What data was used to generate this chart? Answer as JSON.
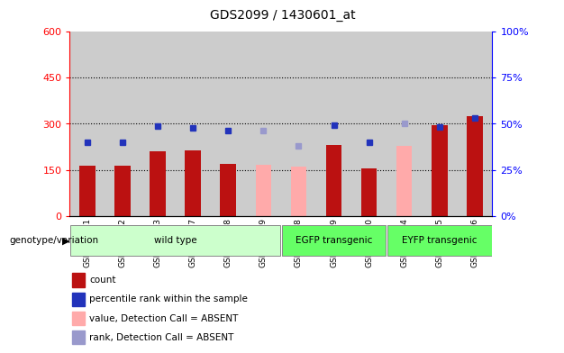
{
  "title": "GDS2099 / 1430601_at",
  "samples": [
    "GSM108531",
    "GSM108532",
    "GSM108533",
    "GSM108537",
    "GSM108538",
    "GSM108539",
    "GSM108528",
    "GSM108529",
    "GSM108530",
    "GSM108534",
    "GSM108535",
    "GSM108536"
  ],
  "groups": [
    {
      "name": "wild type",
      "start": 0,
      "end": 6,
      "color": "#ccffcc"
    },
    {
      "name": "EGFP transgenic",
      "start": 6,
      "end": 9,
      "color": "#66ff66"
    },
    {
      "name": "EYFP transgenic",
      "start": 9,
      "end": 12,
      "color": "#66ff66"
    }
  ],
  "count_values": [
    163,
    165,
    210,
    215,
    170,
    null,
    null,
    232,
    155,
    null,
    295,
    325
  ],
  "count_absent": [
    null,
    null,
    null,
    null,
    null,
    168,
    162,
    null,
    null,
    228,
    null,
    null
  ],
  "rank_values": [
    240,
    240,
    292,
    286,
    278,
    null,
    null,
    294,
    240,
    null,
    290,
    318
  ],
  "rank_absent": [
    null,
    null,
    null,
    null,
    null,
    278,
    228,
    null,
    null,
    300,
    null,
    null
  ],
  "left_ylim": [
    0,
    600
  ],
  "left_yticks": [
    0,
    150,
    300,
    450,
    600
  ],
  "right_ylim": [
    0,
    100
  ],
  "right_yticks": [
    0,
    25,
    50,
    75,
    100
  ],
  "right_yticklabels": [
    "0%",
    "25%",
    "50%",
    "75%",
    "100%"
  ],
  "bar_color_dark": "#bb1111",
  "bar_color_absent": "#ffaaaa",
  "rank_color_dark": "#2233bb",
  "rank_color_absent": "#9999cc",
  "col_bg": "#cccccc",
  "plot_bg": "#ffffff",
  "legend_items": [
    {
      "label": "count",
      "color": "#bb1111"
    },
    {
      "label": "percentile rank within the sample",
      "color": "#2233bb"
    },
    {
      "label": "value, Detection Call = ABSENT",
      "color": "#ffaaaa"
    },
    {
      "label": "rank, Detection Call = ABSENT",
      "color": "#9999cc"
    }
  ]
}
